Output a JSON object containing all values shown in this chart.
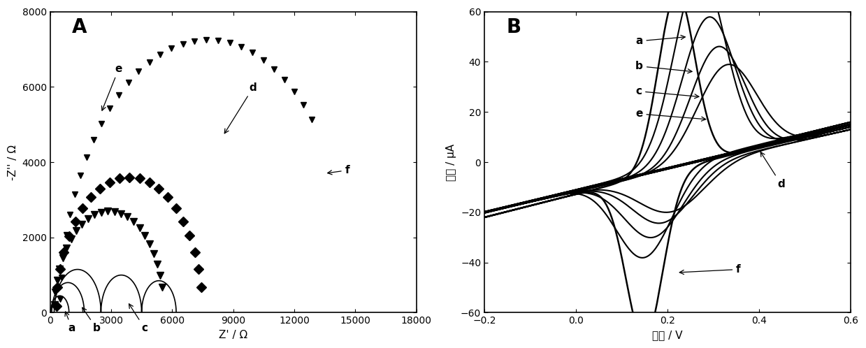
{
  "panel_A": {
    "title": "A",
    "xlabel": "Z' / Ω",
    "ylabel": "-Z'' / Ω",
    "xlim": [
      0,
      18000
    ],
    "ylim": [
      0,
      8000
    ],
    "xticks": [
      0,
      3000,
      6000,
      9000,
      12000,
      15000,
      18000
    ],
    "yticks": [
      0,
      2000,
      4000,
      6000,
      8000
    ]
  },
  "panel_B": {
    "title": "B",
    "xlabel": "电压 / V",
    "ylabel": "电流 / μA",
    "xlim": [
      -0.2,
      0.6
    ],
    "ylim": [
      -60,
      60
    ],
    "xticks": [
      -0.2,
      0.0,
      0.2,
      0.4,
      0.6
    ],
    "yticks": [
      -60,
      -40,
      -20,
      0,
      20,
      40,
      60
    ]
  }
}
